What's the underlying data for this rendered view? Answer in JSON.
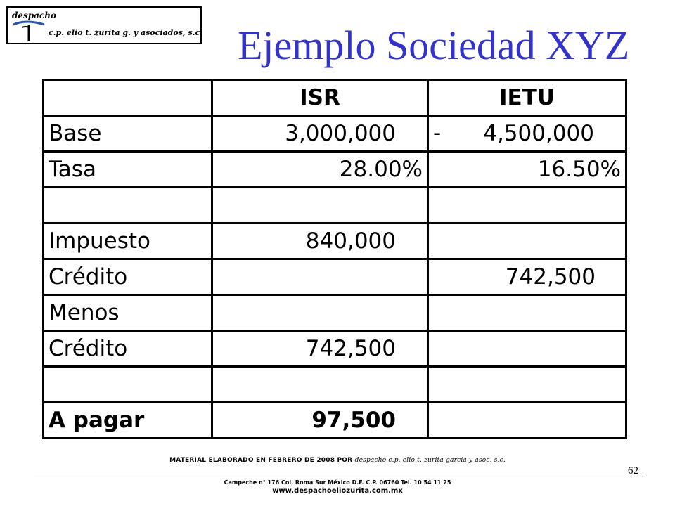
{
  "logo": {
    "name": "despacho",
    "firm": "c.p. elio t. zurita g. y asociados, s.c."
  },
  "title": "Ejemplo Sociedad XYZ",
  "table": {
    "headers": [
      "",
      "ISR",
      "IETU"
    ],
    "rows": [
      {
        "label": "Base",
        "isr": "3,000,000",
        "ietu_prefix": "-",
        "ietu": "4,500,000"
      },
      {
        "label": "Tasa",
        "isr": "28.00%",
        "ietu": "16.50%"
      },
      {
        "label": "",
        "isr": "",
        "ietu": ""
      },
      {
        "label": "Impuesto",
        "isr": "840,000",
        "ietu": ""
      },
      {
        "label": "Crédito",
        "isr": "",
        "ietu": "742,500"
      },
      {
        "label": "Menos",
        "isr": "",
        "ietu": ""
      },
      {
        "label": "Crédito",
        "isr": "742,500",
        "ietu": ""
      },
      {
        "label": "",
        "isr": "",
        "ietu": ""
      },
      {
        "label": "A pagar",
        "isr": "97,500",
        "ietu": ""
      }
    ]
  },
  "footer": {
    "note_prefix": "MATERIAL ELABORADO EN FEBRERO DE 2008 POR",
    "note_firm": "despacho c.p. elio t. zurita garcía y asoc. s.c.",
    "page_number": "62",
    "address": "Campeche n° 176 Col. Roma Sur México D.F. C.P. 06760 Tel. 10 54 11 25",
    "website": "www.despachoeliozurita.com.mx"
  },
  "colors": {
    "title": "#3333cc",
    "logo_accent": "#2b56a8"
  }
}
